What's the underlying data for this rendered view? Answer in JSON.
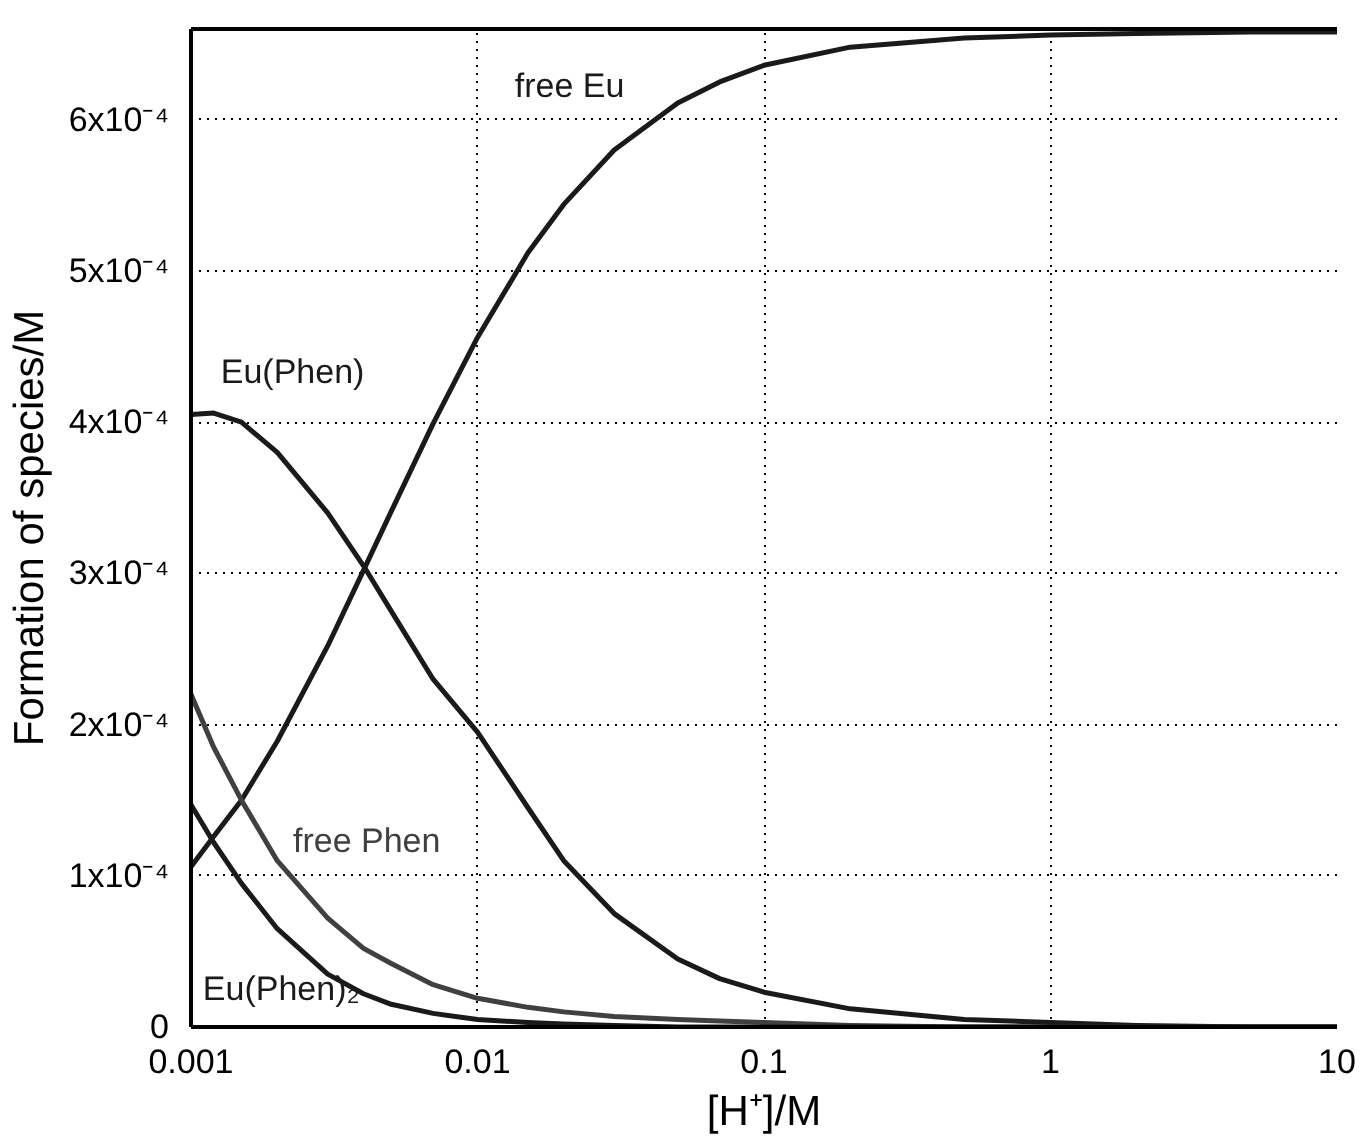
{
  "chart_data": {
    "type": "line",
    "xlabel": "[H⁺]/M",
    "ylabel": "Formation of species/M",
    "log": "x",
    "grid": true,
    "marker": "none",
    "line_style": "solid",
    "xlim": [
      0.001,
      10
    ],
    "xticks": [
      0.001,
      0.01,
      0.1,
      1,
      10
    ],
    "ylim": [
      0,
      0.00066
    ],
    "yticks": [
      0,
      {
        "value": 0.0001,
        "label": "1x10⁻⁴"
      },
      {
        "value": 0.0002,
        "label": "2x10⁻⁴"
      },
      {
        "value": 0.0003,
        "label": "3x10⁻⁴"
      },
      {
        "value": 0.0004,
        "label": "4x10⁻⁴"
      },
      {
        "value": 0.0005,
        "label": "5x10⁻⁴"
      },
      {
        "value": 0.0006,
        "label": "6x10⁻⁴"
      }
    ],
    "x": [
      0.001,
      0.0012,
      0.0015,
      0.002,
      0.003,
      0.004,
      0.005,
      0.007,
      0.01,
      0.015,
      0.02,
      0.03,
      0.05,
      0.07,
      0.1,
      0.2,
      0.5,
      1,
      2,
      5,
      10
    ],
    "series": [
      {
        "name": "free Eu",
        "color": "#1a1a1a",
        "values": [
          0.000106,
          0.000126,
          0.00015,
          0.000189,
          0.000252,
          0.000302,
          0.000341,
          0.000399,
          0.000456,
          0.000512,
          0.000544,
          0.00058,
          0.000611,
          0.000625,
          0.000636,
          0.000648,
          0.000654,
          0.000656,
          0.000657,
          0.000658,
          0.000658
        ]
      },
      {
        "name": "Eu(Phen)",
        "color": "#1a1a1a",
        "values": [
          0.000405,
          0.000406,
          0.0004,
          0.00038,
          0.00034,
          0.000305,
          0.000275,
          0.00023,
          0.000195,
          0.000145,
          0.00011,
          7.5e-05,
          4.5e-05,
          3.2e-05,
          2.3e-05,
          1.2e-05,
          5e-06,
          3e-06,
          1e-06,
          0.0,
          0.0
        ]
      },
      {
        "name": "free Phen",
        "color": "#404040",
        "values": [
          0.00022,
          0.000185,
          0.00015,
          0.00011,
          7.2e-05,
          5.2e-05,
          4.2e-05,
          2.8e-05,
          1.9e-05,
          1.3e-05,
          1e-05,
          7e-06,
          5e-06,
          4e-06,
          3e-06,
          1e-06,
          0.0,
          0.0,
          0.0,
          0.0,
          0.0
        ]
      },
      {
        "name": "Eu(Phen)₂",
        "color": "#1a1a1a",
        "values": [
          0.000147,
          0.000122,
          9.5e-05,
          6.5e-05,
          3.5e-05,
          2.2e-05,
          1.5e-05,
          9e-06,
          5e-06,
          3e-06,
          2e-06,
          1e-06,
          0.0,
          0.0,
          0.0,
          0.0,
          0.0,
          0.0,
          0.0,
          0.0,
          0.0
        ]
      }
    ]
  }
}
